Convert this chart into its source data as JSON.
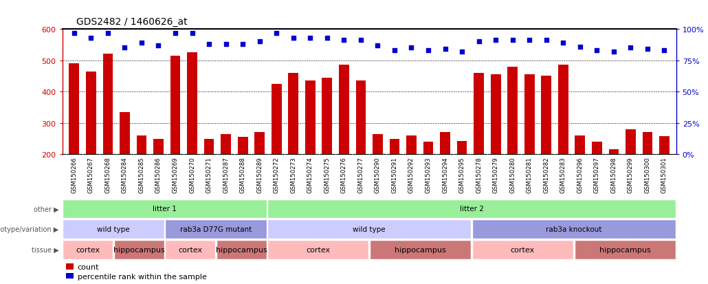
{
  "title": "GDS2482 / 1460626_at",
  "samples": [
    "GSM150266",
    "GSM150267",
    "GSM150268",
    "GSM150284",
    "GSM150285",
    "GSM150286",
    "GSM150269",
    "GSM150270",
    "GSM150271",
    "GSM150287",
    "GSM150288",
    "GSM150289",
    "GSM150272",
    "GSM150273",
    "GSM150274",
    "GSM150275",
    "GSM150276",
    "GSM150277",
    "GSM150290",
    "GSM150291",
    "GSM150292",
    "GSM150293",
    "GSM150294",
    "GSM150295",
    "GSM150278",
    "GSM150279",
    "GSM150280",
    "GSM150281",
    "GSM150282",
    "GSM150283",
    "GSM150296",
    "GSM150297",
    "GSM150298",
    "GSM150299",
    "GSM150300",
    "GSM150301"
  ],
  "counts": [
    490,
    465,
    520,
    335,
    260,
    248,
    515,
    525,
    248,
    265,
    255,
    270,
    425,
    460,
    435,
    445,
    487,
    435,
    265,
    248,
    260,
    240,
    270,
    243,
    460,
    455,
    480,
    455,
    450,
    487,
    260,
    240,
    215,
    280,
    270,
    258
  ],
  "percentile_ranks": [
    97,
    93,
    97,
    85,
    89,
    87,
    97,
    97,
    88,
    88,
    88,
    90,
    97,
    93,
    93,
    93,
    91,
    91,
    87,
    83,
    85,
    83,
    84,
    82,
    90,
    91,
    91,
    91,
    91,
    89,
    86,
    83,
    82,
    85,
    84,
    83
  ],
  "bar_color": "#cc0000",
  "dot_color": "#0000cc",
  "ylim_left": [
    200,
    600
  ],
  "ylim_right": [
    0,
    100
  ],
  "yticks_left": [
    200,
    300,
    400,
    500,
    600
  ],
  "yticks_right": [
    0,
    25,
    50,
    75,
    100
  ],
  "grid_vals": [
    300,
    400,
    500
  ],
  "annotation_rows": [
    {
      "label": "other",
      "segments": [
        {
          "text": "litter 1",
          "start": 0,
          "end": 11,
          "color": "#99ee99"
        },
        {
          "text": "litter 2",
          "start": 12,
          "end": 35,
          "color": "#99ee99"
        }
      ]
    },
    {
      "label": "genotype/variation",
      "segments": [
        {
          "text": "wild type",
          "start": 0,
          "end": 5,
          "color": "#ccccff"
        },
        {
          "text": "rab3a D77G mutant",
          "start": 6,
          "end": 11,
          "color": "#9999dd"
        },
        {
          "text": "wild type",
          "start": 12,
          "end": 23,
          "color": "#ccccff"
        },
        {
          "text": "rab3a knockout",
          "start": 24,
          "end": 35,
          "color": "#9999dd"
        }
      ]
    },
    {
      "label": "tissue",
      "segments": [
        {
          "text": "cortex",
          "start": 0,
          "end": 2,
          "color": "#ffbbbb"
        },
        {
          "text": "hippocampus",
          "start": 3,
          "end": 5,
          "color": "#cc7777"
        },
        {
          "text": "cortex",
          "start": 6,
          "end": 8,
          "color": "#ffbbbb"
        },
        {
          "text": "hippocampus",
          "start": 9,
          "end": 11,
          "color": "#cc7777"
        },
        {
          "text": "cortex",
          "start": 12,
          "end": 17,
          "color": "#ffbbbb"
        },
        {
          "text": "hippocampus",
          "start": 18,
          "end": 23,
          "color": "#cc7777"
        },
        {
          "text": "cortex",
          "start": 24,
          "end": 29,
          "color": "#ffbbbb"
        },
        {
          "text": "hippocampus",
          "start": 30,
          "end": 35,
          "color": "#cc7777"
        }
      ]
    }
  ],
  "legend_items": [
    {
      "label": "count",
      "color": "#cc0000"
    },
    {
      "label": "percentile rank within the sample",
      "color": "#0000cc"
    }
  ],
  "xtick_bg": "#d8d8d8",
  "plot_bg": "#ffffff"
}
